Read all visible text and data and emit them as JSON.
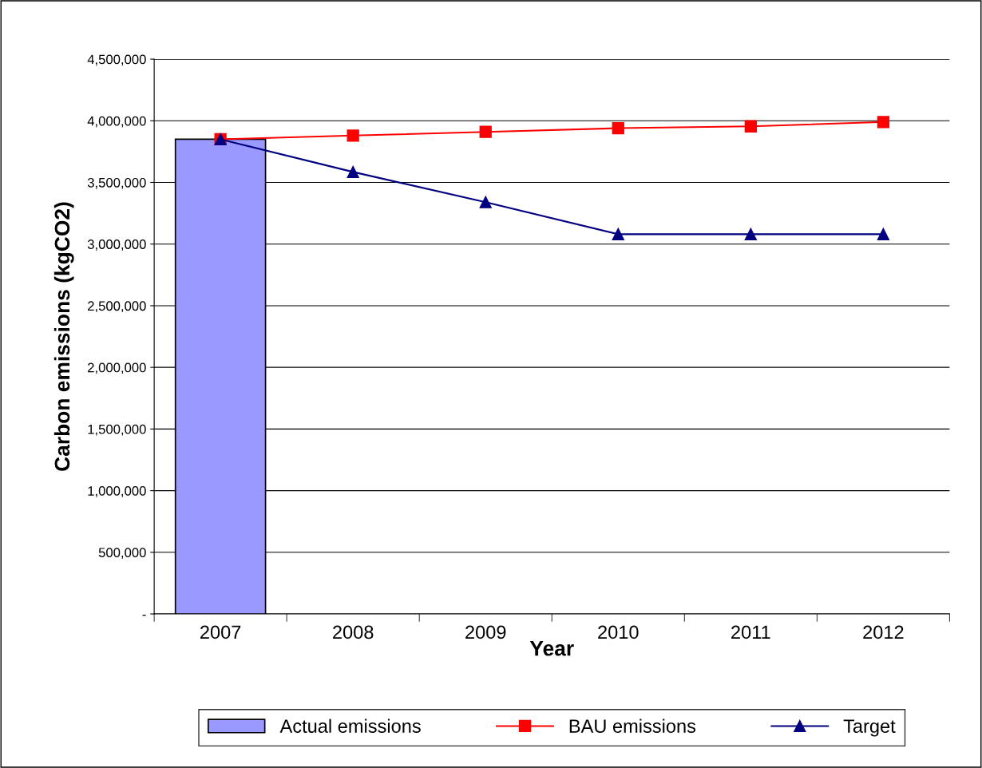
{
  "chart_data": {
    "type": "line",
    "xlabel": "Year",
    "ylabel": "Carbon emissions (kgCO2)",
    "categories": [
      "2007",
      "2008",
      "2009",
      "2010",
      "2011",
      "2012"
    ],
    "series": [
      {
        "name": "Actual emissions",
        "type": "bar",
        "color": "#9999ff",
        "values": [
          3850000,
          null,
          null,
          null,
          null,
          null
        ]
      },
      {
        "name": "BAU emissions",
        "color": "#ff0000",
        "marker": "square",
        "values": [
          3850000,
          3880000,
          3910000,
          3940000,
          3955000,
          3990000
        ]
      },
      {
        "name": "Target",
        "color": "#000080",
        "marker": "triangle",
        "values": [
          3850000,
          3585000,
          3340000,
          3080000,
          3080000,
          3080000
        ]
      }
    ],
    "ylim": [
      0,
      4500000
    ],
    "yticks": [
      {
        "value": 0,
        "label": "-"
      },
      {
        "value": 500000,
        "label": "500,000"
      },
      {
        "value": 1000000,
        "label": "1,000,000"
      },
      {
        "value": 1500000,
        "label": "1,500,000"
      },
      {
        "value": 2000000,
        "label": "2,000,000"
      },
      {
        "value": 2500000,
        "label": "2,500,000"
      },
      {
        "value": 3000000,
        "label": "3,000,000"
      },
      {
        "value": 3500000,
        "label": "3,500,000"
      },
      {
        "value": 4000000,
        "label": "4,000,000"
      },
      {
        "value": 4500000,
        "label": "4,500,000"
      }
    ],
    "grid": "y",
    "legend": "bottom"
  }
}
